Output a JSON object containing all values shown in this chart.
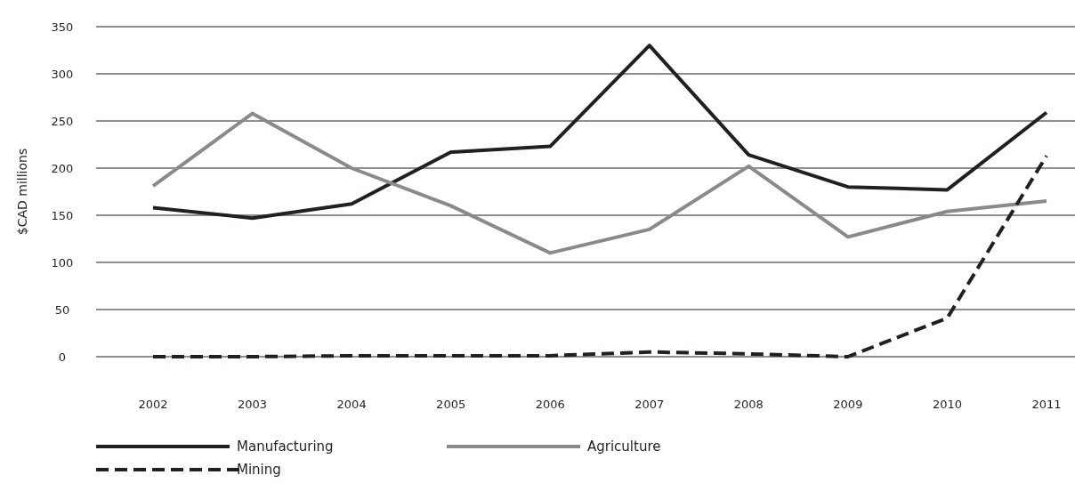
{
  "chart_data": {
    "type": "line",
    "ylabel": "$CAD millions",
    "categories": [
      "2002",
      "2003",
      "2004",
      "2005",
      "2006",
      "2007",
      "2008",
      "2009",
      "2010",
      "2011"
    ],
    "series": [
      {
        "name": "Manufacturing",
        "color": "#231f20",
        "line_style": "solid",
        "values": [
          158,
          147,
          162,
          217,
          223,
          330,
          214,
          180,
          177,
          259
        ]
      },
      {
        "name": "Agriculture",
        "color": "#8a8a8a",
        "line_style": "solid",
        "values": [
          181,
          258,
          200,
          160,
          110,
          135,
          202,
          127,
          154,
          165
        ]
      },
      {
        "name": "Mining",
        "color": "#231f20",
        "line_style": "dashed",
        "values": [
          0,
          0,
          1,
          1,
          1,
          5,
          3,
          0,
          41,
          213
        ]
      }
    ],
    "ylim": [
      0,
      350
    ],
    "yticks": [
      0,
      50,
      100,
      150,
      200,
      250,
      300,
      350
    ],
    "grid": "y",
    "legend": "bottom"
  }
}
